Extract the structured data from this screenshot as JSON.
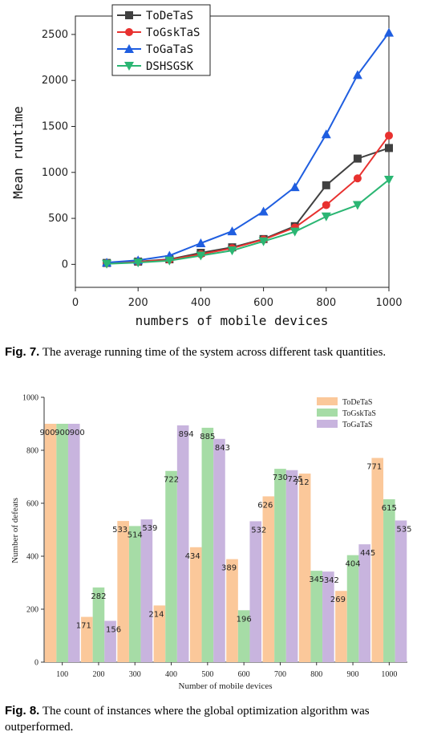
{
  "captions": [
    {
      "label": "Fig. 7.",
      "text": "The average running time of the system across different task quantities."
    },
    {
      "label": "Fig. 8.",
      "text": "The count of instances where the global optimization algorithm was outperformed."
    }
  ],
  "chart_data": [
    {
      "type": "line",
      "title": "",
      "xlabel": "numbers of mobile devices",
      "ylabel": "Mean runtime",
      "x": [
        100,
        200,
        300,
        400,
        500,
        600,
        700,
        800,
        900,
        1000
      ],
      "xlim": [
        0,
        1000
      ],
      "ylim": [
        -250,
        2700
      ],
      "xticks": [
        "0",
        "200",
        "400",
        "600",
        "800",
        "1000"
      ],
      "yticks": [
        "0",
        "500",
        "1000",
        "1500",
        "2000",
        "2500"
      ],
      "legend": "top-left",
      "grid": false,
      "series": [
        {
          "name": "ToDeTaS",
          "color": "#404040",
          "marker": "square",
          "values": [
            15,
            30,
            55,
            125,
            185,
            275,
            415,
            860,
            1150,
            1265
          ]
        },
        {
          "name": "ToGskTaS",
          "color": "#e8312f",
          "marker": "circle",
          "values": [
            12,
            28,
            50,
            110,
            175,
            270,
            400,
            645,
            935,
            1400
          ]
        },
        {
          "name": "ToGaTaS",
          "color": "#1f5ee0",
          "marker": "triangle-up",
          "values": [
            20,
            45,
            95,
            230,
            360,
            575,
            840,
            1415,
            2060,
            2520
          ]
        },
        {
          "name": "DSHSGSK",
          "color": "#2bb673",
          "marker": "triangle-down",
          "values": [
            5,
            20,
            40,
            95,
            150,
            250,
            355,
            520,
            645,
            920
          ]
        }
      ]
    },
    {
      "type": "bar",
      "title": "",
      "xlabel": "Number of mobile devices",
      "ylabel": "Number of defeats",
      "categories": [
        "100",
        "200",
        "300",
        "400",
        "500",
        "600",
        "700",
        "800",
        "900",
        "1000"
      ],
      "ylim": [
        0,
        1000
      ],
      "yticks": [
        "0",
        "200",
        "400",
        "600",
        "800",
        "1000"
      ],
      "legend": "top-right",
      "grid": false,
      "series": [
        {
          "name": "ToDeTaS",
          "color": "#fbc89a",
          "values": [
            900,
            171,
            533,
            214,
            434,
            389,
            626,
            712,
            269,
            771
          ]
        },
        {
          "name": "ToGskTaS",
          "color": "#a6dca6",
          "values": [
            900,
            282,
            514,
            722,
            885,
            196,
            730,
            345,
            404,
            615
          ]
        },
        {
          "name": "ToGaTaS",
          "color": "#c8b4de",
          "values": [
            900,
            156,
            539,
            894,
            843,
            532,
            725,
            342,
            445,
            535
          ]
        }
      ]
    }
  ]
}
